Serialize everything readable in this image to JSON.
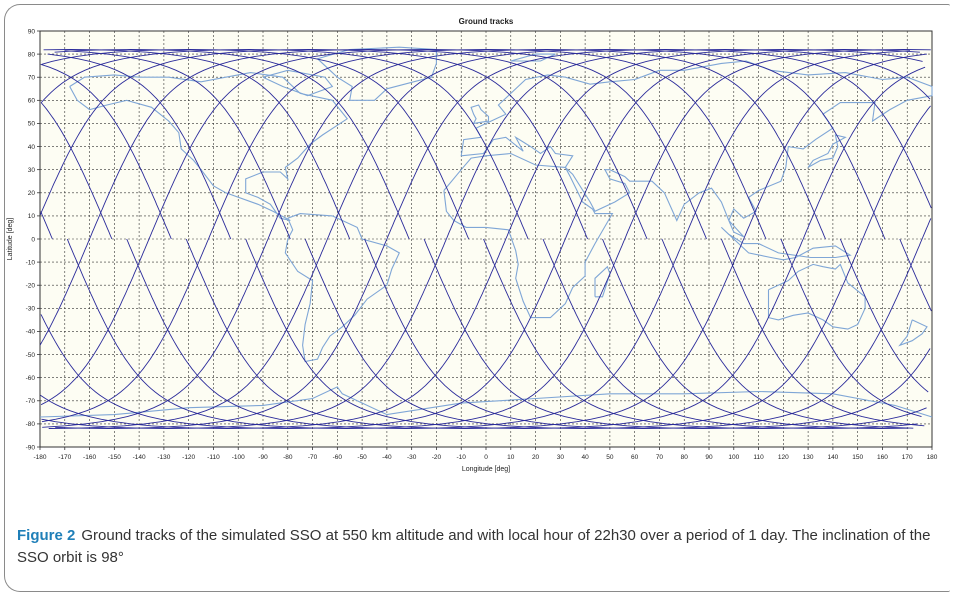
{
  "chart_data": {
    "type": "line",
    "title": "Ground tracks",
    "xlabel": "Longitude [deg]",
    "ylabel": "Latitude [deg]",
    "xlim": [
      -180,
      180
    ],
    "ylim": [
      -90,
      90
    ],
    "x_ticks": [
      -180,
      -170,
      -160,
      -150,
      -140,
      -130,
      -120,
      -110,
      -100,
      -90,
      -80,
      -70,
      -60,
      -50,
      -40,
      -30,
      -20,
      -10,
      0,
      10,
      20,
      30,
      40,
      50,
      60,
      70,
      80,
      90,
      100,
      110,
      120,
      130,
      140,
      150,
      160,
      170,
      180
    ],
    "y_ticks": [
      90,
      80,
      70,
      60,
      50,
      40,
      30,
      20,
      10,
      0,
      -10,
      -20,
      -30,
      -40,
      -50,
      -60,
      -70,
      -80,
      -90
    ],
    "grid": true,
    "series": [
      {
        "inclination_deg": 98,
        "altitude_km": 550,
        "ascending_node_longitudes_deg": [
          -175,
          -151,
          -127,
          -103,
          -79,
          -55,
          -31,
          -7,
          17,
          41,
          65,
          89,
          113,
          137,
          161
        ],
        "color": "#2b2b9a"
      }
    ],
    "background_layer": "coastlines",
    "coastline_color": "#7fa6d6",
    "track_color": "#2b2b9a"
  },
  "caption": {
    "label": "Figure 2",
    "text": "Ground tracks of the simulated SSO at 550 km altitude and with local hour of 22h30 over a period of 1 day. The inclination of the SSO orbit is 98°"
  }
}
